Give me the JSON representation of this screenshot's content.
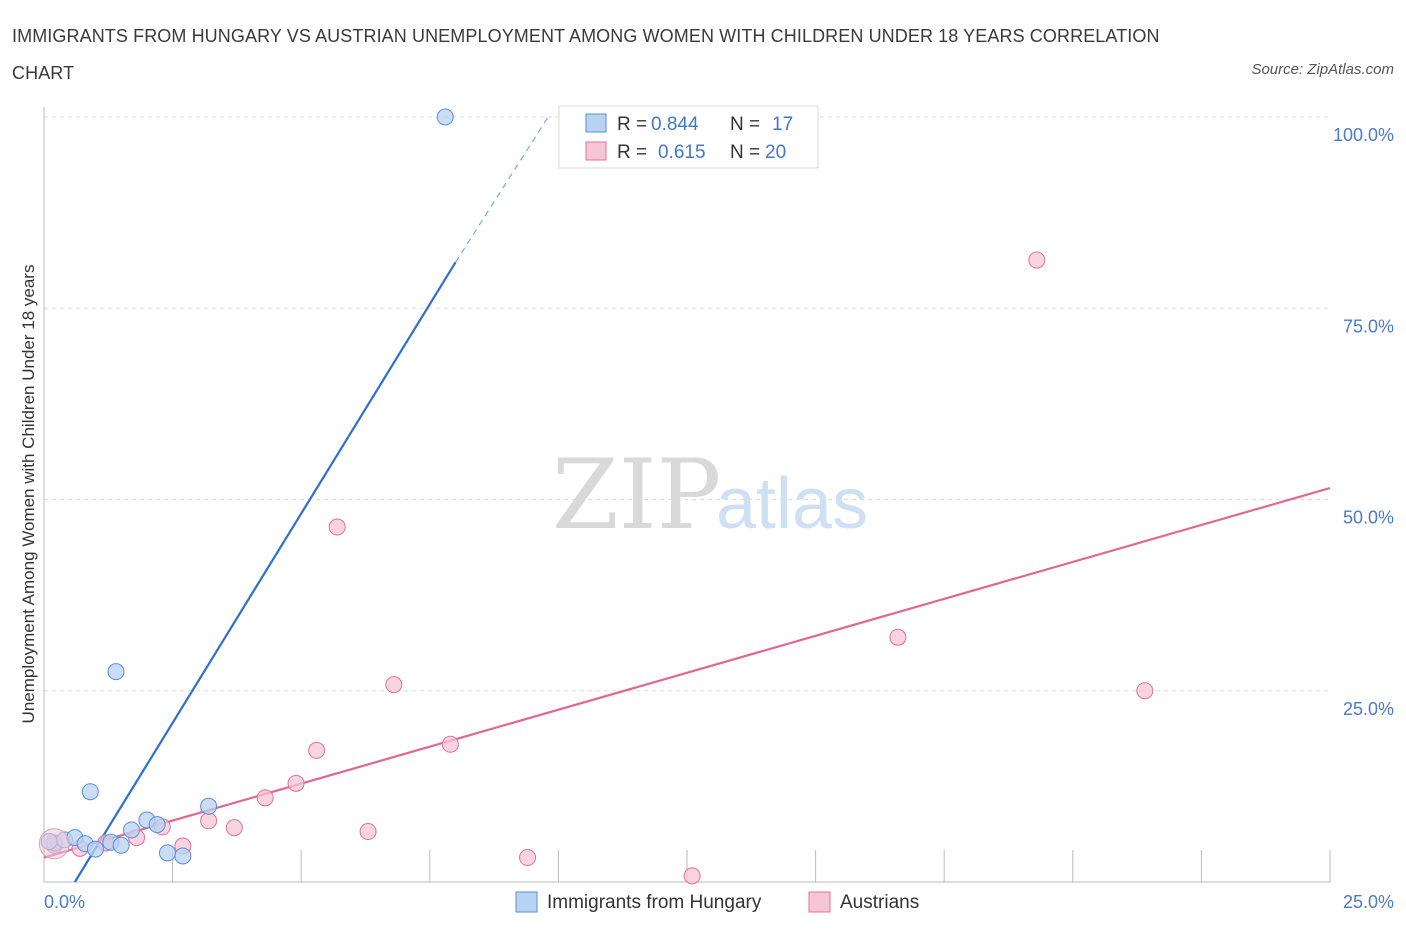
{
  "title": "IMMIGRANTS FROM HUNGARY VS AUSTRIAN UNEMPLOYMENT AMONG WOMEN WITH CHILDREN UNDER 18 YEARS CORRELATION CHART",
  "source": "Source: ZipAtlas.com",
  "watermark": {
    "zip": "ZIP",
    "atlas": "atlas"
  },
  "chart_data": {
    "type": "scatter",
    "xlabel": "",
    "ylabel": "Unemployment Among Women with Children Under 18 years",
    "xlim": [
      0,
      25
    ],
    "ylim": [
      0,
      100
    ],
    "x_tick_labels": [
      "0.0%",
      "25.0%"
    ],
    "y_ticks": [
      25,
      50,
      75,
      100
    ],
    "y_tick_labels": [
      "25.0%",
      "50.0%",
      "75.0%",
      "100.0%"
    ],
    "grid": true,
    "legend": {
      "placement": "top-center",
      "entries": [
        {
          "r_label": "R =",
          "r_value": "0.844",
          "n_label": "N =",
          "n_value": "17"
        },
        {
          "r_label": "R =",
          "r_value": "0.615",
          "n_label": "N =",
          "n_value": "20"
        }
      ]
    },
    "series": [
      {
        "name": "Immigrants from Hungary",
        "color": "#5b8fd8",
        "fill": "#b8d2f2",
        "points": [
          [
            0.2,
            5.1
          ],
          [
            0.4,
            5.5
          ],
          [
            0.6,
            5.8
          ],
          [
            0.8,
            5.0
          ],
          [
            0.9,
            11.8
          ],
          [
            1.0,
            4.3
          ],
          [
            1.3,
            5.2
          ],
          [
            1.5,
            4.8
          ],
          [
            1.7,
            6.8
          ],
          [
            2.0,
            8.1
          ],
          [
            2.2,
            7.5
          ],
          [
            2.4,
            3.8
          ],
          [
            2.7,
            3.4
          ],
          [
            3.2,
            9.9
          ],
          [
            1.4,
            27.5
          ],
          [
            7.8,
            100.0
          ],
          [
            0.1,
            5.3
          ]
        ],
        "trendline": {
          "x0": 0.6,
          "y0": 0.0,
          "x1": 8.0,
          "y1": 81.0,
          "dash_x1": 9.8,
          "dash_y1": 100.0
        }
      },
      {
        "name": "Austrians",
        "color": "#e0709a",
        "fill": "#f7c6d6",
        "points": [
          [
            0.2,
            4.8
          ],
          [
            0.7,
            4.4
          ],
          [
            1.2,
            5.1
          ],
          [
            1.8,
            5.8
          ],
          [
            2.3,
            7.2
          ],
          [
            2.7,
            4.7
          ],
          [
            3.2,
            8.0
          ],
          [
            3.7,
            7.1
          ],
          [
            4.3,
            11.0
          ],
          [
            4.9,
            12.9
          ],
          [
            5.3,
            17.2
          ],
          [
            5.7,
            46.4
          ],
          [
            6.3,
            6.6
          ],
          [
            6.8,
            25.8
          ],
          [
            7.9,
            18.0
          ],
          [
            9.4,
            3.2
          ],
          [
            12.6,
            0.8
          ],
          [
            16.6,
            32.0
          ],
          [
            19.3,
            81.3
          ],
          [
            21.4,
            25.0
          ]
        ],
        "trendline": {
          "x0": 0.0,
          "y0": 3.2,
          "x1": 25.0,
          "y1": 51.5
        }
      }
    ]
  }
}
